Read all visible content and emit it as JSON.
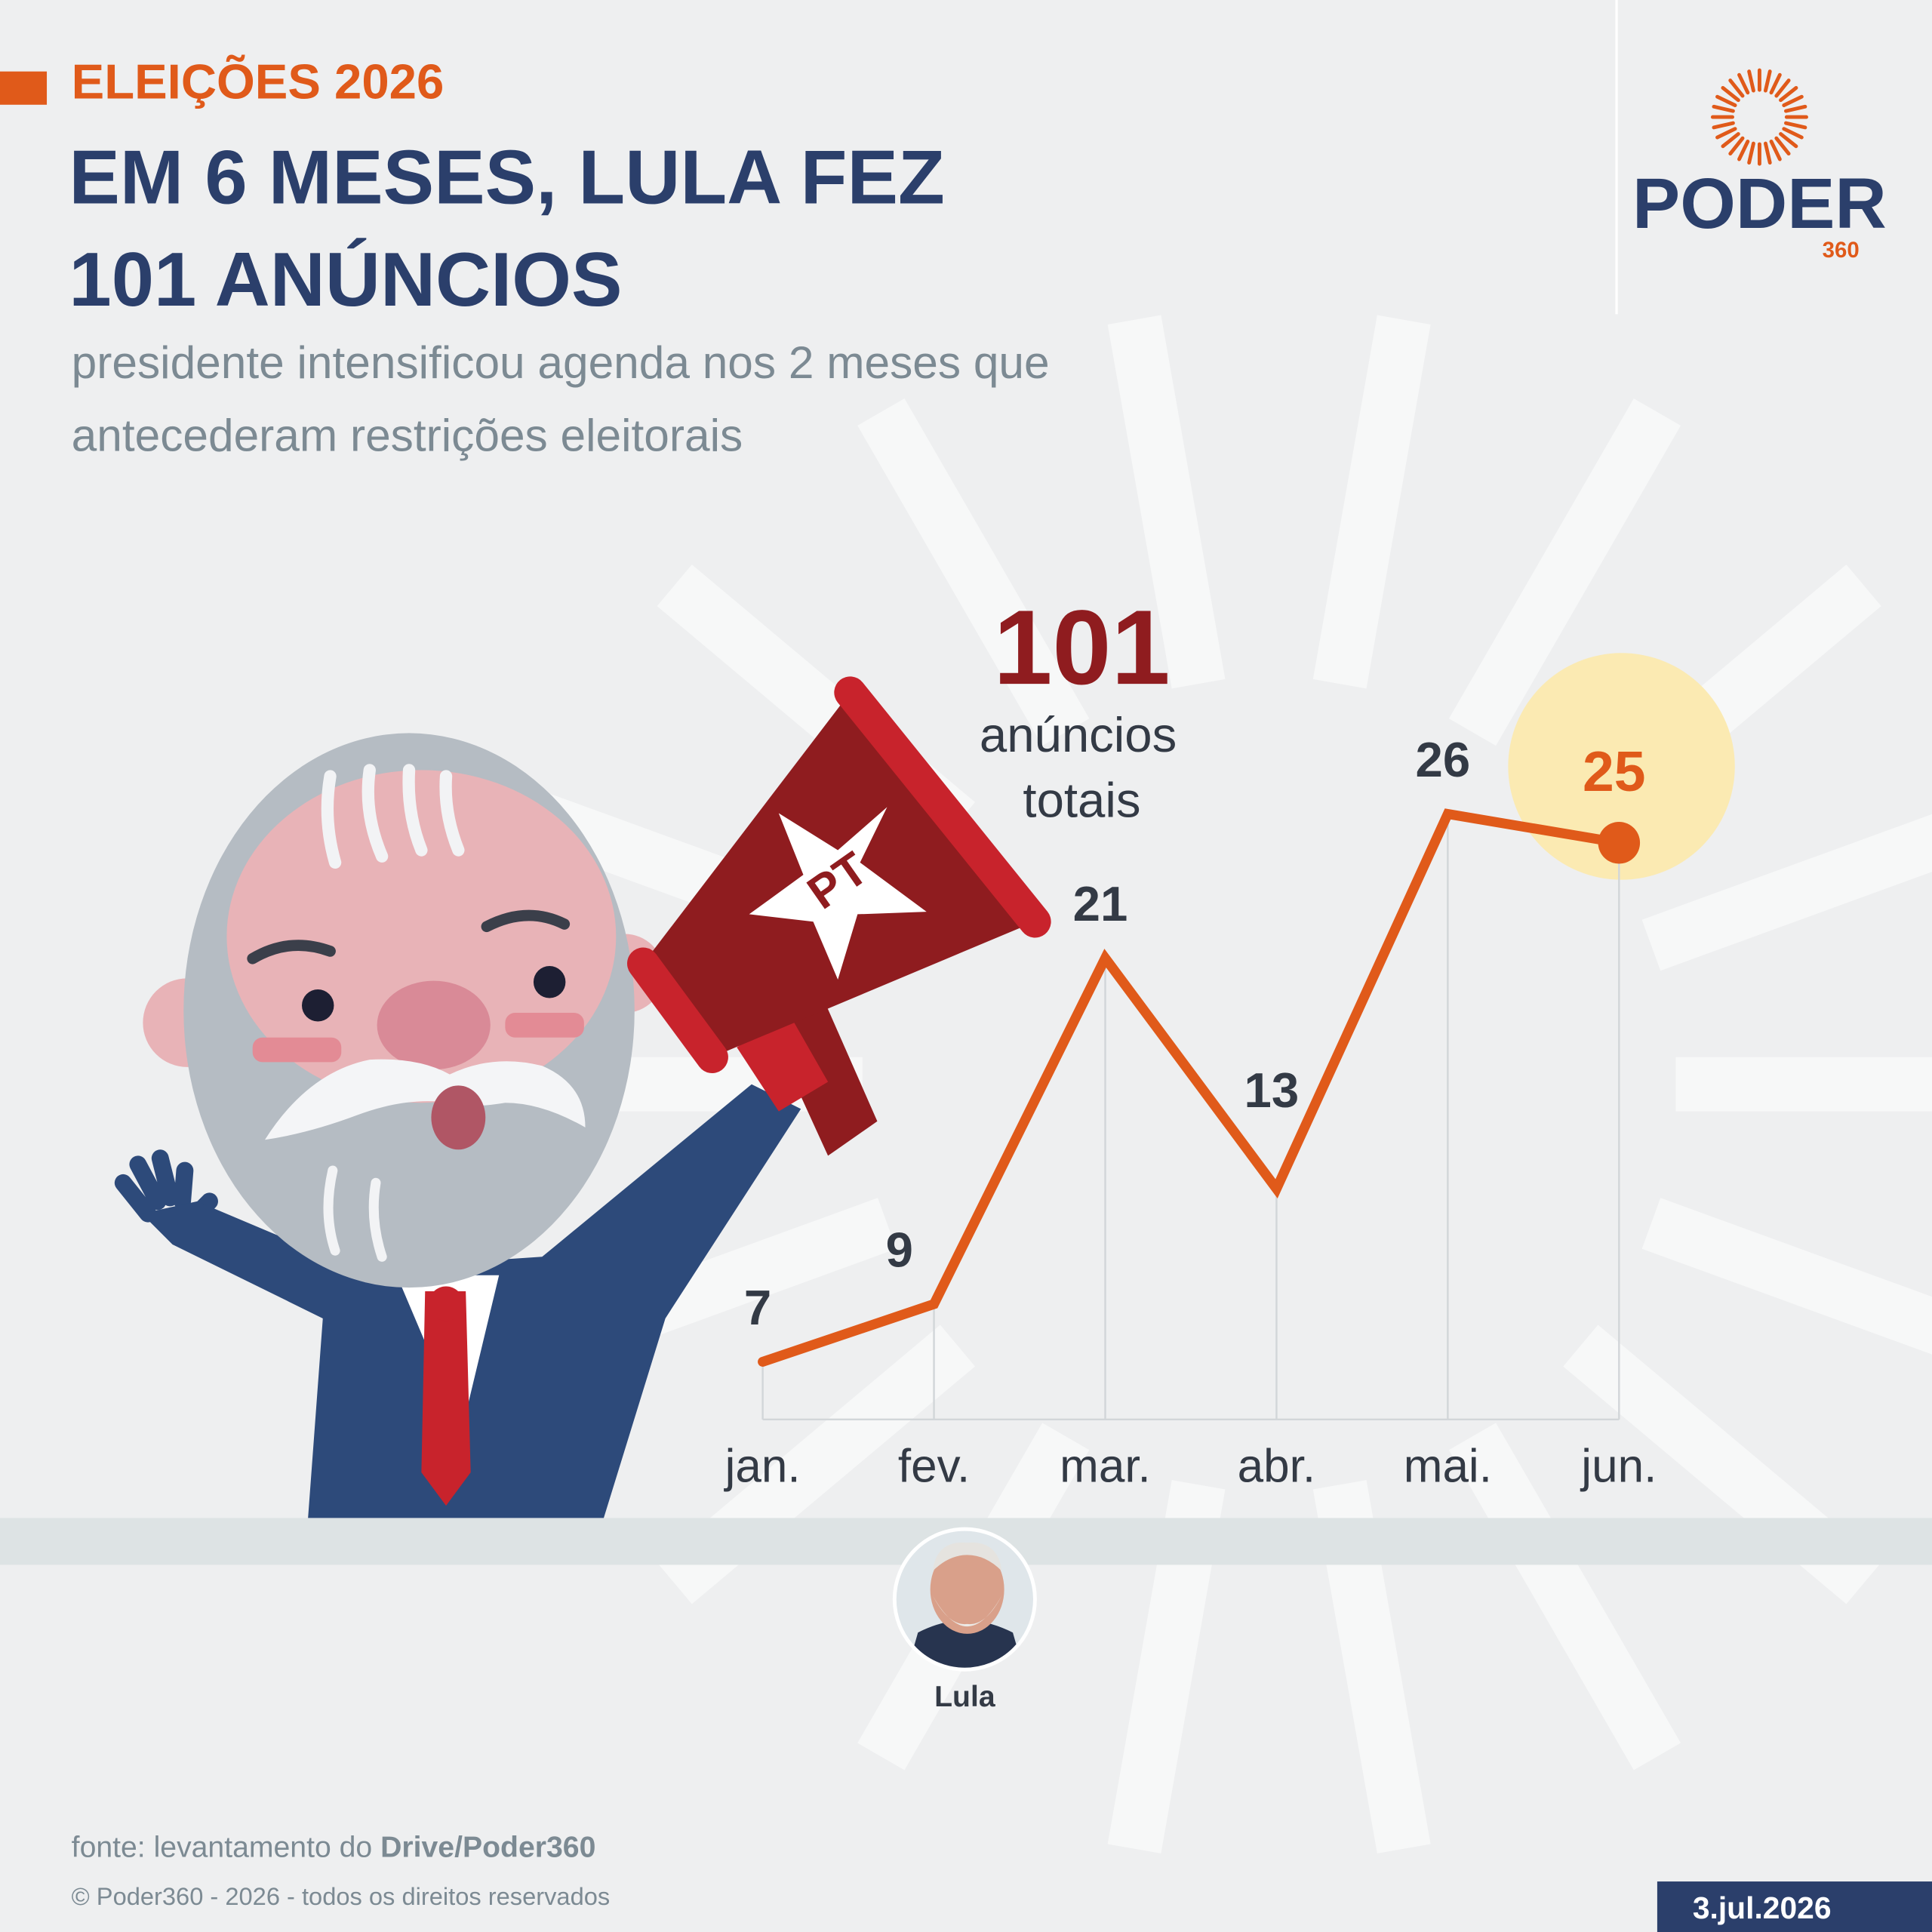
{
  "chart_data": {
    "type": "line",
    "kicker": "ELEIÇÕES 2026",
    "title_lines": [
      "EM 6 MESES, LULA FEZ",
      "101 ANÚNCIOS"
    ],
    "subtitle_lines": [
      "presidente intensificou agenda nos 2 meses que",
      "antecederam restrições eleitorais"
    ],
    "categories": [
      "jan.",
      "fev.",
      "mar.",
      "abr.",
      "mai.",
      "jun."
    ],
    "series": [
      {
        "name": "Lula",
        "color": "#e05a1a",
        "values": [
          7,
          9,
          21,
          13,
          26,
          25
        ]
      }
    ],
    "ylim": [
      5,
      30
    ],
    "highlight_index": 5,
    "highlight_color": "#fbeab2",
    "total": 101,
    "total_label_lines": [
      "anúncios",
      "totais"
    ],
    "megaphone_label": "PT",
    "source_label": "fonte: levantamento do",
    "source_name": "Drive/Poder360",
    "copyright": "© Poder360 - 2026 - todos os direitos reservados",
    "date": "3.jul.2026",
    "logo": {
      "name": "PODER",
      "number": "360"
    }
  }
}
